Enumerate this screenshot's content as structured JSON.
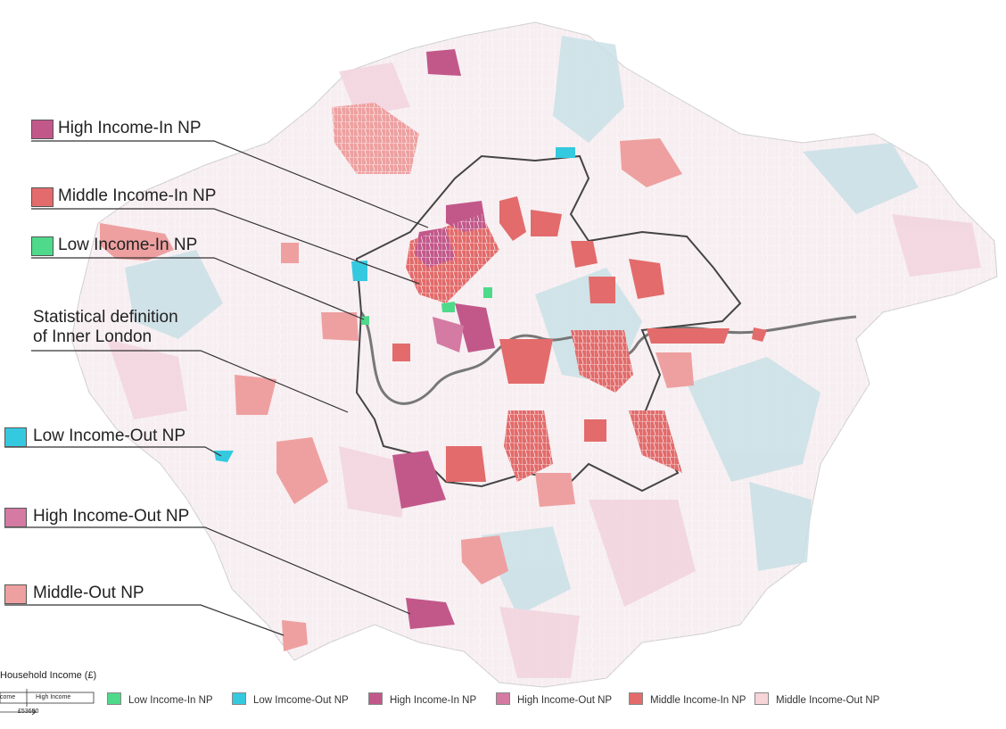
{
  "colors": {
    "high_in": "#c2588a",
    "middle_in": "#e36b6b",
    "low_in": "#4fd98a",
    "low_out": "#35c9e0",
    "high_out": "#d47aa3",
    "middle_out": "#eea0a0",
    "middle_out_legend": "#f6d4d8",
    "background_blue": "#c9e0e6",
    "background_pink": "#f2d4de",
    "inner_boundary": "#444444"
  },
  "callouts": {
    "high_in": "High Income-In NP",
    "middle_in": "Middle Income-In NP",
    "low_in": "Low Income-In NP",
    "inner_line1": "Statistical definition",
    "inner_line2": "of Inner London",
    "low_out": "Low Income-Out NP",
    "high_out": "High Income-Out NP",
    "middle_out": "Middle-Out NP"
  },
  "legend": {
    "title": "Household Income (£)",
    "scale_low": "come",
    "scale_high": "High Income",
    "scale_value": "£53600",
    "items": [
      {
        "label": "Low Income-In NP",
        "color": "#4fd98a"
      },
      {
        "label": "Low Imcome-Out NP",
        "color": "#35c9e0"
      },
      {
        "label": "High Income-In NP",
        "color": "#c2588a"
      },
      {
        "label": "High Income-Out NP",
        "color": "#d47aa3"
      },
      {
        "label": "Middle Income-In NP",
        "color": "#e36b6b"
      },
      {
        "label": "Middle Income-Out NP",
        "color": "#f6d4d8"
      }
    ]
  }
}
